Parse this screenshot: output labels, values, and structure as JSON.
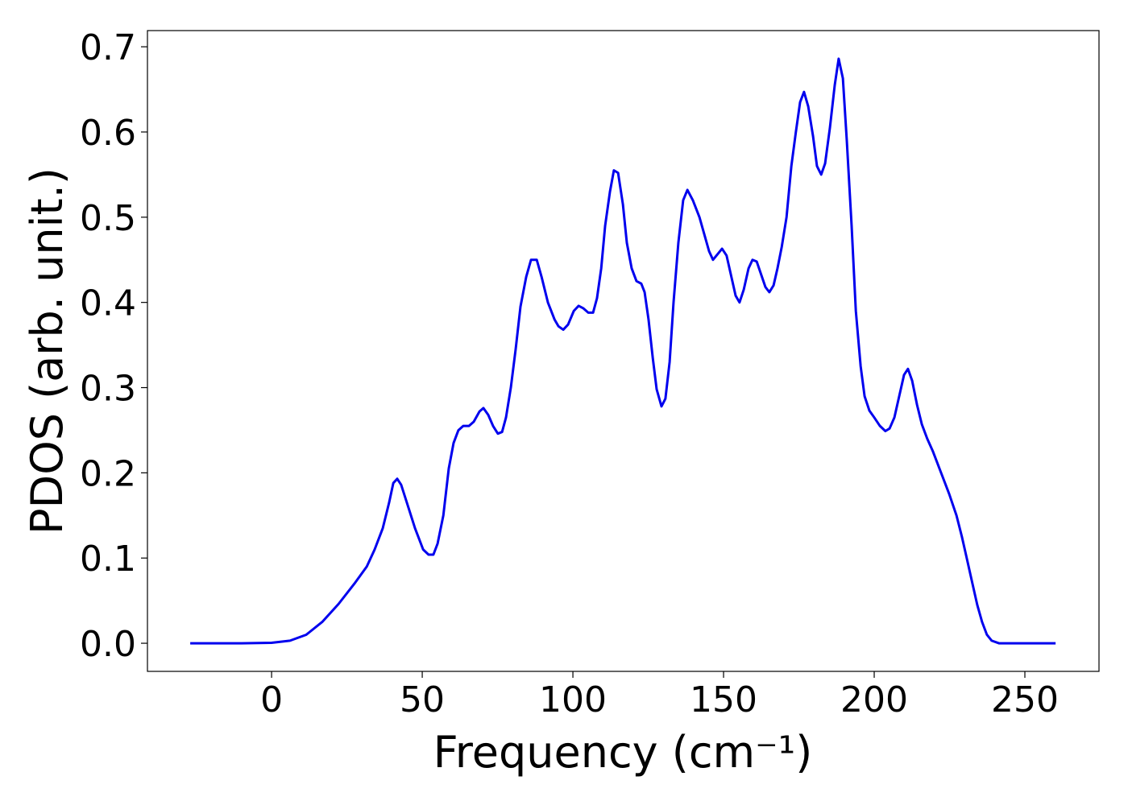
{
  "chart_data": {
    "type": "line",
    "xlabel": "Frequency (cm⁻¹)",
    "ylabel": "PDOS (arb. unit.)",
    "xlim": [
      -41.2,
      274.6
    ],
    "ylim": [
      -0.033,
      0.719
    ],
    "xticks": [
      0,
      50,
      100,
      150,
      200,
      250
    ],
    "yticks": [
      {
        "value": 0,
        "label": "0.0"
      },
      0.1,
      0.2,
      0.3,
      0.4,
      0.5,
      0.6,
      0.7
    ],
    "grid": false,
    "series": [
      {
        "color": "#0000ee",
        "x": [
          -27,
          -10,
          0,
          6.1,
          11.5,
          16.8,
          22.2,
          27.5,
          31.6,
          34.2,
          36.9,
          39,
          40.4,
          41.7,
          43,
          44.9,
          47.6,
          50.3,
          52.1,
          53.7,
          55.1,
          57,
          58.8,
          60.4,
          62,
          63.6,
          65.5,
          67.1,
          69,
          70.3,
          71.9,
          73.5,
          75.1,
          76.5,
          77.8,
          79.4,
          81,
          82.6,
          84.5,
          86.1,
          88,
          89.6,
          91.7,
          93.9,
          95.2,
          96.8,
          98.4,
          100.3,
          101.9,
          103.5,
          105.1,
          106.7,
          108,
          109.4,
          110.7,
          112.3,
          113.6,
          115,
          116.6,
          117.9,
          119.5,
          121.1,
          122.7,
          123.8,
          125.1,
          126.5,
          127.8,
          129.4,
          130.7,
          132.1,
          133.4,
          135,
          136.6,
          138,
          139.8,
          142,
          145.2,
          146.5,
          149.5,
          151,
          154,
          155.3,
          156.7,
          158.3,
          159.6,
          161,
          163.9,
          165.2,
          166.6,
          167.9,
          169.3,
          170.9,
          172.5,
          174,
          175.4,
          176.7,
          178.1,
          179.7,
          181,
          182.4,
          183.7,
          185.3,
          186.9,
          188.2,
          189.6,
          190.9,
          192.5,
          193.9,
          195.5,
          196.8,
          198.4,
          200,
          201.9,
          203.7,
          205.1,
          206.7,
          208.3,
          209.9,
          211.2,
          212.6,
          214.2,
          215.8,
          217.6,
          219.5,
          222.2,
          224.9,
          227.3,
          229.1,
          230.7,
          232.6,
          234.2,
          235.8,
          237.4,
          239,
          241.4,
          260.2
        ],
        "values": [
          0,
          0,
          0.0005,
          0.003,
          0.01,
          0.025,
          0.046,
          0.07,
          0.09,
          0.11,
          0.135,
          0.165,
          0.188,
          0.193,
          0.186,
          0.165,
          0.135,
          0.11,
          0.104,
          0.104,
          0.117,
          0.15,
          0.205,
          0.235,
          0.25,
          0.255,
          0.255,
          0.26,
          0.272,
          0.276,
          0.268,
          0.255,
          0.246,
          0.248,
          0.265,
          0.3,
          0.345,
          0.395,
          0.43,
          0.45,
          0.45,
          0.43,
          0.4,
          0.38,
          0.372,
          0.368,
          0.374,
          0.39,
          0.396,
          0.393,
          0.388,
          0.388,
          0.405,
          0.44,
          0.49,
          0.53,
          0.555,
          0.552,
          0.515,
          0.47,
          0.44,
          0.425,
          0.422,
          0.412,
          0.38,
          0.335,
          0.298,
          0.278,
          0.287,
          0.33,
          0.4,
          0.47,
          0.52,
          0.532,
          0.52,
          0.5,
          0.46,
          0.45,
          0.463,
          0.455,
          0.408,
          0.4,
          0.415,
          0.44,
          0.45,
          0.448,
          0.418,
          0.412,
          0.42,
          0.44,
          0.465,
          0.5,
          0.56,
          0.6,
          0.635,
          0.647,
          0.63,
          0.595,
          0.56,
          0.55,
          0.563,
          0.605,
          0.655,
          0.686,
          0.663,
          0.59,
          0.49,
          0.39,
          0.325,
          0.29,
          0.273,
          0.265,
          0.255,
          0.249,
          0.252,
          0.265,
          0.29,
          0.315,
          0.322,
          0.308,
          0.28,
          0.257,
          0.24,
          0.225,
          0.2,
          0.175,
          0.15,
          0.125,
          0.1,
          0.07,
          0.045,
          0.025,
          0.01,
          0.003,
          0,
          0
        ]
      }
    ]
  }
}
